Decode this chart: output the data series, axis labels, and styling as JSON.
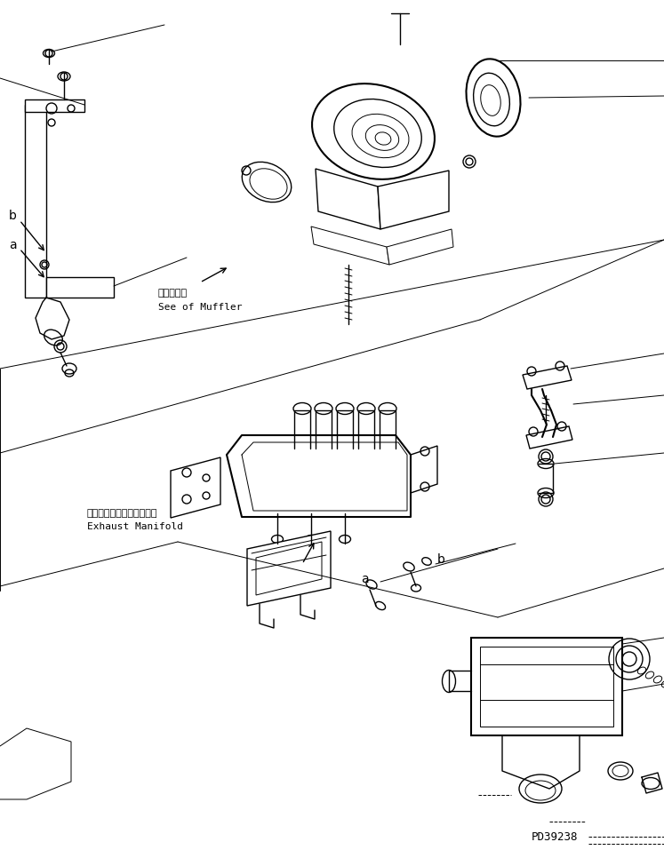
{
  "title": "",
  "background_color": "#ffffff",
  "line_color": "#000000",
  "fig_width": 7.47,
  "fig_height": 9.57,
  "dpi": 100,
  "part_number": "PD39238",
  "label_muffler_jp": "マフラ参照",
  "label_muffler_en": "See of Muffler",
  "label_exhaust_jp": "エキゾーストマニホールド",
  "label_exhaust_en": "Exhaust Manifold",
  "lw": 1.0,
  "lw_thick": 1.5,
  "lw_thin": 0.7
}
